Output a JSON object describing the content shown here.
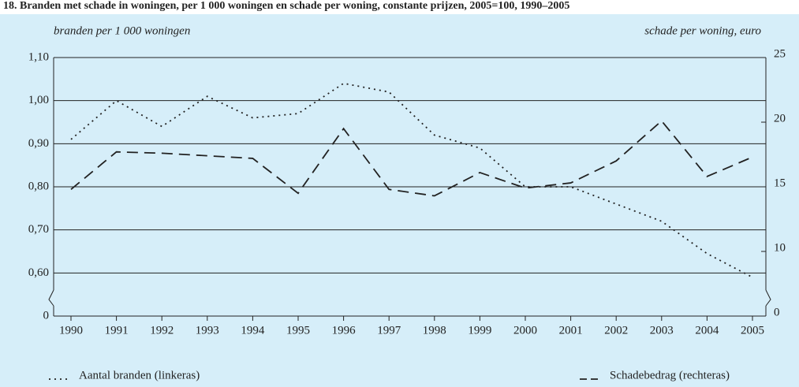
{
  "chart_data": {
    "type": "line",
    "title": "18. Branden met schade in woningen, per 1 000 woningen en schade per woning, constante prijzen, 2005=100, 1990–2005",
    "y_label": "branden per 1 000 woningen",
    "y2_label": "schade per woning, euro",
    "categories": [
      "1990",
      "1991",
      "1992",
      "1993",
      "1994",
      "1995",
      "1996",
      "1997",
      "1998",
      "1999",
      "2000",
      "2001",
      "2002",
      "2003",
      "2004",
      "2005"
    ],
    "series": [
      {
        "name": "Aantal branden (linkeras)",
        "color": "#222222",
        "style": "dotted",
        "values": [
          0.91,
          1.0,
          0.94,
          1.01,
          0.96,
          0.97,
          1.04,
          1.02,
          0.92,
          0.89,
          0.8,
          0.8,
          0.76,
          0.72,
          0.645,
          0.59
        ]
      },
      {
        "name": "Schadebedrag (rechteras)",
        "color": "#222222",
        "style": "dashed",
        "axis": "y2",
        "values": [
          14.8,
          17.7,
          17.6,
          17.4,
          17.2,
          14.5,
          19.5,
          14.8,
          14.3,
          16.1,
          14.9,
          15.3,
          17.0,
          20.1,
          15.8,
          17.3
        ]
      }
    ],
    "ylim": [
      0,
      1.1
    ],
    "yticks": [
      0,
      {
        "value": 0.6,
        "label": "0,60"
      },
      {
        "value": 0.7,
        "label": "0,70"
      },
      {
        "value": 0.8,
        "label": "0,80"
      },
      {
        "value": 0.9,
        "label": "0,90"
      },
      {
        "value": 1.0,
        "label": "1,00"
      },
      {
        "value": 1.1,
        "label": "1,10"
      }
    ],
    "y2lim": [
      0,
      25
    ],
    "y2ticks": [
      0,
      10,
      15,
      20,
      25
    ],
    "axis_break": true,
    "grid": true
  }
}
